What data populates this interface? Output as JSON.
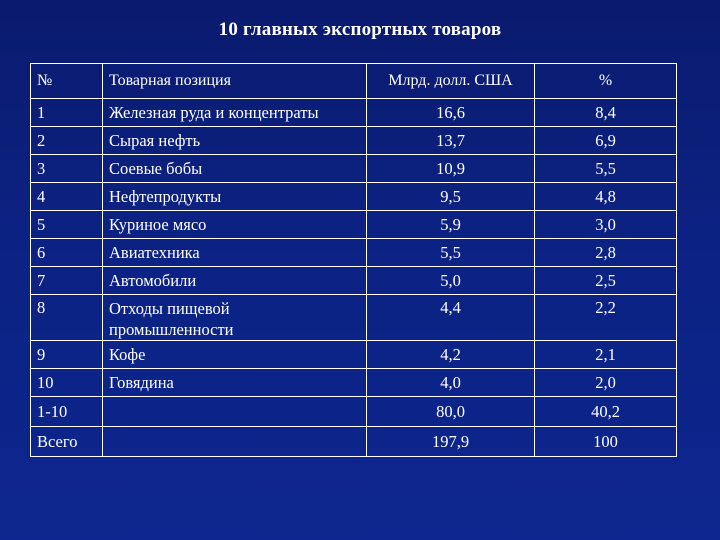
{
  "title": "10 главных экспортных товаров",
  "table": {
    "headers": [
      "№",
      "Товарная позиция",
      "Млрд. долл. США",
      "%"
    ],
    "rows": [
      {
        "num": "1",
        "item": "Железная руда и концентраты",
        "bln_usd": "16,6",
        "percent": "8,4"
      },
      {
        "num": "2",
        "item": "Сырая нефть",
        "bln_usd": "13,7",
        "percent": "6,9"
      },
      {
        "num": "3",
        "item": "Соевые бобы",
        "bln_usd": "10,9",
        "percent": "5,5"
      },
      {
        "num": "4",
        "item": "Нефтепродукты",
        "bln_usd": "9,5",
        "percent": "4,8"
      },
      {
        "num": "5",
        "item": "Куриное мясо",
        "bln_usd": "5,9",
        "percent": "3,0"
      },
      {
        "num": "6",
        "item": "Авиатехника",
        "bln_usd": "5,5",
        "percent": "2,8"
      },
      {
        "num": "7",
        "item": "Автомобили",
        "bln_usd": "5,0",
        "percent": "2,5"
      },
      {
        "num": "8",
        "item_line1": "Отходы пищевой",
        "item_line2": "промышленности",
        "bln_usd": "4,4",
        "percent": "2,2"
      },
      {
        "num": "9",
        "item": "Кофе",
        "bln_usd": "4,2",
        "percent": "2,1"
      },
      {
        "num": "10",
        "item": "Говядина",
        "bln_usd": "4,0",
        "percent": "2,0"
      },
      {
        "num": "1-10",
        "item": "",
        "bln_usd": "80,0",
        "percent": "40,2"
      },
      {
        "num": "Всего",
        "item": "",
        "bln_usd": "197,9",
        "percent": "100"
      }
    ]
  }
}
